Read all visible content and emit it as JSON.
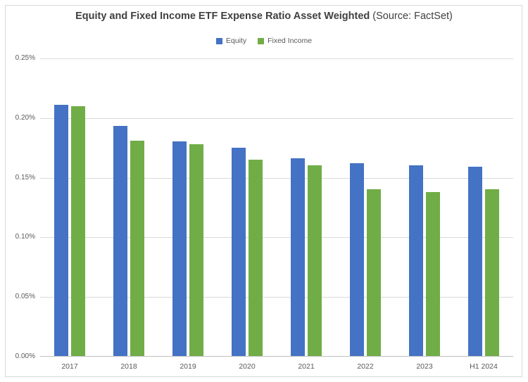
{
  "chart_title": {
    "main": "Equity and Fixed Income ETF Expense Ratio Asset Weighted",
    "source": "(Source: FactSet)"
  },
  "chart_data": {
    "type": "bar",
    "title": "Equity and Fixed Income ETF Expense Ratio Asset Weighted (Source: FactSet)",
    "categories": [
      "2017",
      "2018",
      "2019",
      "2020",
      "2021",
      "2022",
      "2023",
      "H1 2024"
    ],
    "series": [
      {
        "name": "Equity",
        "color": "#4472C4",
        "values": [
          0.211,
          0.193,
          0.18,
          0.175,
          0.166,
          0.162,
          0.16,
          0.159
        ]
      },
      {
        "name": "Fixed Income",
        "color": "#70AD47",
        "values": [
          0.21,
          0.181,
          0.178,
          0.165,
          0.16,
          0.14,
          0.138,
          0.14
        ]
      }
    ],
    "xlabel": "",
    "ylabel": "",
    "ylim": [
      0,
      0.25
    ],
    "y_tick_values": [
      0.25,
      0.2,
      0.15,
      0.1,
      0.05,
      0.0
    ],
    "y_tick_labels": [
      "0.25%",
      "0.20%",
      "0.15%",
      "0.10%",
      "0.05%",
      "0.00%"
    ],
    "grid": true,
    "legend_position": "top"
  },
  "colors": {
    "equity": "#4472C4",
    "fixed_income": "#70AD47",
    "gridline": "#D9D9D9",
    "axis_line": "#BFBFBF",
    "tick_label": "#595959",
    "title_text": "#404040",
    "chart_border": "#D9D9D9",
    "background": "#FFFFFF"
  }
}
